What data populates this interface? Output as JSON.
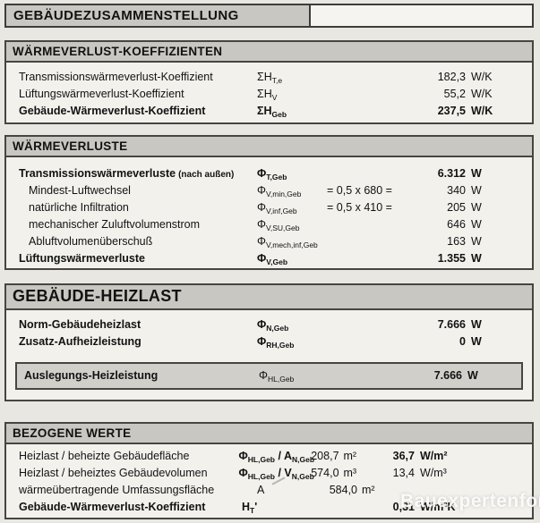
{
  "title": "GEBÄUDEZUSAMMENSTELLUNG",
  "watermark": "Bauexpertenforum",
  "colors": {
    "page_bg": "#e8e7e2",
    "section_bg": "#f2f1ec",
    "header_bar_bg": "#c8c7c1",
    "highlight_bg": "#d0cfc9",
    "border": "#474540",
    "text": "#121212"
  },
  "sections": [
    {
      "id": "waermeverlust-koeffizienten",
      "title": "WÄRMEVERLUST-KOEFFIZIENTEN",
      "rows": [
        {
          "label": "Transmissionswärmeverlust-Koeffizient",
          "symbol": "ΣH_{T,e}",
          "num": "182,3",
          "unit": "W/K"
        },
        {
          "label": "Lüftungswärmeverlust-Koeffizient",
          "symbol": "ΣH_{V}",
          "num": "55,2",
          "unit": "W/K"
        },
        {
          "label": "Gebäude-Wärmeverlust-Koeffizient",
          "symbol": "ΣH_{Geb}",
          "num": "237,5",
          "unit": "W/K",
          "bold": true
        }
      ]
    },
    {
      "id": "waermeverluste",
      "title": "WÄRMEVERLUSTE",
      "rows": [
        {
          "label": "Transmissionswärmeverluste",
          "suffix": "(nach außen)",
          "symbol": "Φ_{T,Geb}",
          "num": "6.312",
          "unit": "W",
          "bold": true
        },
        {
          "label": "Mindest-Luftwechsel",
          "indent": true,
          "symbol": "Φ_{V,min,Geb}",
          "formula": "= 0,5 x 680 =",
          "num": "340",
          "unit": "W"
        },
        {
          "label": "natürliche Infiltration",
          "indent": true,
          "symbol": "Φ_{V,inf,Geb}",
          "formula": "= 0,5 x 410 =",
          "num": "205",
          "unit": "W"
        },
        {
          "label": "mechanischer Zuluftvolumenstrom",
          "indent": true,
          "symbol": "Φ_{V,SU,Geb}",
          "num": "646",
          "unit": "W"
        },
        {
          "label": "Abluftvolumenüberschuß",
          "indent": true,
          "symbol": "Φ_{V,mech,inf,Geb}",
          "num": "163",
          "unit": "W"
        },
        {
          "label": "Lüftungswärmeverluste",
          "symbol": "Φ_{V,Geb}",
          "num": "1.355",
          "unit": "W",
          "bold": true
        }
      ]
    },
    {
      "id": "gebaeude-heizlast",
      "title": "GEBÄUDE-HEIZLAST",
      "large_title": true,
      "rows": [
        {
          "label": "Norm-Gebäudeheizlast",
          "symbol": "Φ_{N,Geb}",
          "num": "7.666",
          "unit": "W",
          "bold": true
        },
        {
          "label": "Zusatz-Aufheizleistung",
          "symbol": "Φ_{RH,Geb}",
          "num": "0",
          "unit": "W",
          "bold": true
        }
      ],
      "highlight": {
        "label": "Auslegungs-Heizleistung",
        "symbol": "Φ_{HL,Geb}",
        "num": "7.666",
        "unit": "W",
        "label_bold": true,
        "value_bold": true
      }
    },
    {
      "id": "bezogene-werte",
      "title": "BEZOGENE WERTE",
      "wide_units": true,
      "rows": [
        {
          "label": "Heizlast / beheizte Gebäudefläche",
          "symbol": "Φ_{HL,Geb} / A_{N,Geb}",
          "symbol_bold": true,
          "mid_num": "208,7",
          "mid_unit": "m²",
          "num": "36,7",
          "unit": "W/m²",
          "value_bold": true
        },
        {
          "label": "Heizlast / beheiztes Gebäudevolumen",
          "symbol": "Φ_{HL,Geb} / V_{N,Geb}",
          "symbol_bold": true,
          "mid_num": "574,0",
          "mid_unit": "m³",
          "num": "13,4",
          "unit": "W/m³"
        },
        {
          "label": "wärmeübertragende Umfassungsfläche",
          "symbol": "A",
          "mid_num": "584,0",
          "mid_unit": "m²"
        },
        {
          "label": "Gebäude-Wärmeverlust-Koeffizient",
          "label_bold": true,
          "symbol": "H_{T}'",
          "symbol_bold": true,
          "num": "0,31",
          "unit": "W/m²K",
          "value_bold": true
        }
      ]
    }
  ]
}
